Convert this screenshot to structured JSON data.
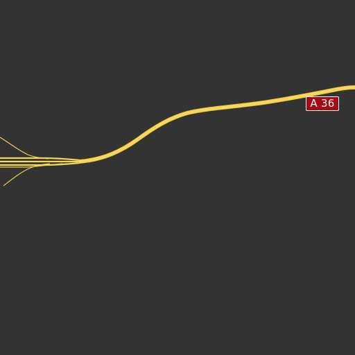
{
  "map": {
    "background_color": "#333333",
    "motorway_color": "#f7d75a",
    "motorway_casing_color": "#e0b93a",
    "ramp_color": "#f2cf55",
    "shield": {
      "label": "A 36",
      "background_color": "#a50b12",
      "text_color": "#ffffff"
    }
  }
}
